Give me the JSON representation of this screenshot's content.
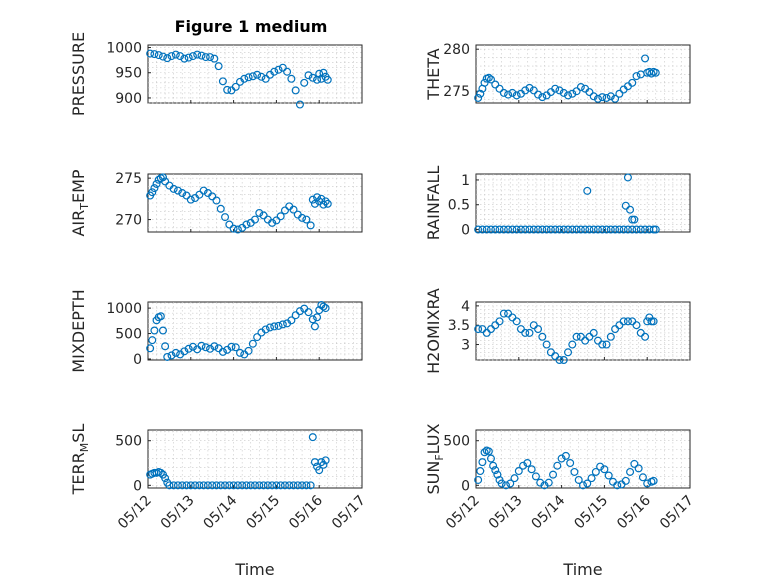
{
  "figure": {
    "title": "Figure 1 medium",
    "marker_color": "#0072BD",
    "grid": "minor-dotted"
  },
  "chart_data": [
    {
      "type": "scatter",
      "ylabel": "PRESSURE",
      "ylim": [
        890,
        1005
      ],
      "yticks": [
        900,
        950,
        1000
      ],
      "xlim": [
        "05/12",
        "05/17"
      ],
      "xticks": [
        "05/12",
        "05/13",
        "05/14",
        "05/15",
        "05/16",
        "05/17"
      ],
      "xlabel": "",
      "x": [
        0.05,
        0.15,
        0.25,
        0.35,
        0.45,
        0.55,
        0.65,
        0.75,
        0.85,
        0.95,
        1.05,
        1.15,
        1.25,
        1.35,
        1.45,
        1.55,
        1.65,
        1.75,
        1.85,
        1.95,
        2.05,
        2.15,
        2.25,
        2.35,
        2.45,
        2.55,
        2.65,
        2.75,
        2.85,
        2.95,
        3.05,
        3.15,
        3.25,
        3.35,
        3.45,
        3.55,
        3.65,
        3.75,
        3.85,
        3.95,
        4.0,
        4.05,
        4.1,
        4.15,
        4.2
      ],
      "y": [
        988,
        987,
        985,
        982,
        979,
        983,
        986,
        983,
        978,
        980,
        983,
        986,
        984,
        981,
        981,
        978,
        963,
        933,
        916,
        915,
        922,
        932,
        938,
        941,
        943,
        946,
        942,
        938,
        946,
        952,
        956,
        960,
        952,
        938,
        915,
        887,
        930,
        945,
        940,
        936,
        948,
        938,
        950,
        942,
        936
      ]
    },
    {
      "type": "scatter",
      "ylabel": "THETA",
      "ylim": [
        273.6,
        280.5
      ],
      "yticks": [
        275,
        280
      ],
      "xlim": [
        "05/12",
        "05/17"
      ],
      "xticks": [
        "05/12",
        "05/13",
        "05/14",
        "05/15",
        "05/16",
        "05/17"
      ],
      "xlabel": "",
      "x": [
        0.05,
        0.1,
        0.15,
        0.2,
        0.25,
        0.3,
        0.35,
        0.45,
        0.55,
        0.65,
        0.75,
        0.85,
        0.95,
        1.05,
        1.15,
        1.25,
        1.35,
        1.45,
        1.55,
        1.65,
        1.75,
        1.85,
        1.95,
        2.05,
        2.15,
        2.25,
        2.35,
        2.45,
        2.55,
        2.65,
        2.75,
        2.85,
        2.95,
        3.05,
        3.15,
        3.25,
        3.35,
        3.45,
        3.55,
        3.65,
        3.75,
        3.85,
        3.95,
        4.0,
        4.05,
        4.1,
        4.15,
        4.2
      ],
      "y": [
        274.2,
        274.7,
        275.3,
        276,
        276.5,
        276.6,
        276.4,
        275.8,
        275.3,
        274.8,
        274.6,
        274.8,
        274.5,
        274.7,
        275.1,
        275.4,
        275.1,
        274.6,
        274.3,
        274.5,
        274.9,
        275.3,
        275.1,
        274.8,
        274.5,
        274.7,
        275,
        275.5,
        275.3,
        274.9,
        274.4,
        274.1,
        274.3,
        274.2,
        274.4,
        274.1,
        274.7,
        275.2,
        275.6,
        276,
        276.8,
        277,
        278.9,
        277.2,
        277.3,
        277.1,
        277.3,
        277.2
      ]
    },
    {
      "type": "scatter",
      "ylabel": "AIR_TEMP",
      "ylim": [
        268.5,
        275.5
      ],
      "yticks": [
        270,
        275
      ],
      "xlim": [
        "05/12",
        "05/17"
      ],
      "xticks": [
        "05/12",
        "05/13",
        "05/14",
        "05/15",
        "05/16",
        "05/17"
      ],
      "xlabel": "",
      "x": [
        0.05,
        0.1,
        0.15,
        0.2,
        0.25,
        0.3,
        0.35,
        0.4,
        0.5,
        0.6,
        0.7,
        0.8,
        0.9,
        1.0,
        1.1,
        1.2,
        1.3,
        1.4,
        1.5,
        1.6,
        1.7,
        1.8,
        1.9,
        2.0,
        2.1,
        2.2,
        2.3,
        2.4,
        2.5,
        2.6,
        2.7,
        2.8,
        2.9,
        3.0,
        3.1,
        3.2,
        3.3,
        3.4,
        3.5,
        3.6,
        3.7,
        3.8,
        3.85,
        3.9,
        3.95,
        4.0,
        4.05,
        4.1,
        4.15,
        4.2
      ],
      "y": [
        272.9,
        273.3,
        273.8,
        274.3,
        274.8,
        275.0,
        275.1,
        274.6,
        274.1,
        273.7,
        273.5,
        273.2,
        272.9,
        272.4,
        272.6,
        273.0,
        273.5,
        273.2,
        272.8,
        272.3,
        271.3,
        270.3,
        269.4,
        268.9,
        268.8,
        269.0,
        269.4,
        269.6,
        270.0,
        270.8,
        270.5,
        270.0,
        269.6,
        269.9,
        270.4,
        271.1,
        271.6,
        271.2,
        270.6,
        270.2,
        270.0,
        269.3,
        272.4,
        271.9,
        272.7,
        272.2,
        272.5,
        271.8,
        272.2,
        271.9
      ]
    },
    {
      "type": "scatter",
      "ylabel": "RAINFALL",
      "ylim": [
        -0.05,
        1.12
      ],
      "yticks": [
        0,
        0.5,
        1
      ],
      "xlim": [
        "05/12",
        "05/17"
      ],
      "xticks": [
        "05/12",
        "05/13",
        "05/14",
        "05/15",
        "05/16",
        "05/17"
      ],
      "xlabel": "",
      "x": [
        0.05,
        0.15,
        0.25,
        0.35,
        0.45,
        0.55,
        0.65,
        0.75,
        0.85,
        0.95,
        1.05,
        1.15,
        1.25,
        1.35,
        1.45,
        1.55,
        1.65,
        1.75,
        1.85,
        1.95,
        2.05,
        2.15,
        2.25,
        2.35,
        2.45,
        2.55,
        2.65,
        2.75,
        2.85,
        2.95,
        3.05,
        3.15,
        3.25,
        3.35,
        3.45,
        3.55,
        3.65,
        3.75,
        3.85,
        3.95,
        4.05,
        4.15,
        4.2,
        2.6,
        3.55,
        3.5,
        3.6,
        3.65,
        3.7
      ],
      "y": [
        0,
        0,
        0,
        0,
        0,
        0,
        0,
        0,
        0,
        0,
        0,
        0,
        0,
        0,
        0,
        0,
        0,
        0,
        0,
        0,
        0,
        0,
        0,
        0,
        0,
        0,
        0,
        0,
        0,
        0,
        0,
        0,
        0,
        0,
        0,
        0,
        0,
        0,
        0,
        0,
        0,
        0,
        0,
        0.78,
        1.05,
        0.48,
        0.4,
        0.2,
        0.2
      ]
    },
    {
      "type": "scatter",
      "ylabel": "MIXDEPTH",
      "ylim": [
        -20,
        1120
      ],
      "yticks": [
        0,
        500,
        1000
      ],
      "xlim": [
        "05/12",
        "05/17"
      ],
      "xticks": [
        "05/12",
        "05/13",
        "05/14",
        "05/15",
        "05/16",
        "05/17"
      ],
      "xlabel": "",
      "x": [
        0.05,
        0.1,
        0.15,
        0.2,
        0.25,
        0.3,
        0.35,
        0.4,
        0.45,
        0.55,
        0.65,
        0.75,
        0.85,
        0.95,
        1.05,
        1.15,
        1.25,
        1.35,
        1.45,
        1.55,
        1.65,
        1.75,
        1.85,
        1.95,
        2.05,
        2.15,
        2.25,
        2.35,
        2.45,
        2.55,
        2.65,
        2.75,
        2.85,
        2.95,
        3.05,
        3.15,
        3.25,
        3.35,
        3.45,
        3.55,
        3.65,
        3.75,
        3.85,
        3.9,
        3.95,
        4.0,
        4.05,
        4.1,
        4.15
      ],
      "y": [
        210,
        370,
        560,
        760,
        820,
        840,
        560,
        250,
        40,
        70,
        120,
        90,
        150,
        200,
        240,
        190,
        260,
        230,
        200,
        250,
        210,
        140,
        180,
        240,
        230,
        120,
        90,
        160,
        300,
        430,
        520,
        580,
        620,
        640,
        650,
        680,
        700,
        760,
        860,
        940,
        990,
        920,
        780,
        640,
        820,
        960,
        1060,
        1030,
        1000
      ]
    },
    {
      "type": "scatter",
      "ylabel": "H2OMIXRA",
      "ylim": [
        2.6,
        4.1
      ],
      "yticks": [
        3,
        3.5,
        4
      ],
      "xlim": [
        "05/12",
        "05/17"
      ],
      "xticks": [
        "05/12",
        "05/13",
        "05/14",
        "05/15",
        "05/16",
        "05/17"
      ],
      "xlabel": "",
      "x": [
        0.05,
        0.15,
        0.25,
        0.35,
        0.45,
        0.55,
        0.65,
        0.75,
        0.85,
        0.95,
        1.05,
        1.15,
        1.25,
        1.35,
        1.45,
        1.55,
        1.65,
        1.75,
        1.85,
        1.95,
        2.05,
        2.15,
        2.25,
        2.35,
        2.45,
        2.55,
        2.65,
        2.75,
        2.85,
        2.95,
        3.05,
        3.15,
        3.25,
        3.35,
        3.45,
        3.55,
        3.65,
        3.75,
        3.85,
        3.95,
        4.0,
        4.05,
        4.1,
        4.15
      ],
      "y": [
        3.4,
        3.4,
        3.3,
        3.4,
        3.5,
        3.6,
        3.8,
        3.8,
        3.7,
        3.6,
        3.4,
        3.3,
        3.3,
        3.5,
        3.4,
        3.2,
        3.0,
        2.8,
        2.7,
        2.6,
        2.6,
        2.8,
        3.0,
        3.2,
        3.2,
        3.1,
        3.2,
        3.3,
        3.1,
        3.0,
        3.0,
        3.2,
        3.4,
        3.5,
        3.6,
        3.6,
        3.6,
        3.5,
        3.3,
        3.2,
        3.6,
        3.7,
        3.6,
        3.6
      ]
    },
    {
      "type": "scatter",
      "ylabel": "TERR_MSL",
      "ylim": [
        -30,
        620
      ],
      "yticks": [
        0,
        500
      ],
      "xlim": [
        "05/12",
        "05/17"
      ],
      "xticks": [
        "05/12",
        "05/13",
        "05/14",
        "05/15",
        "05/16",
        "05/17"
      ],
      "xlabel": "05/12 05/13 05/14 05/15 05/16 05/17",
      "x": [
        0.05,
        0.1,
        0.15,
        0.2,
        0.25,
        0.3,
        0.35,
        0.4,
        0.45,
        0.5,
        0.6,
        0.7,
        0.8,
        0.9,
        1.0,
        1.1,
        1.2,
        1.3,
        1.4,
        1.5,
        1.6,
        1.7,
        1.8,
        1.9,
        2.0,
        2.1,
        2.2,
        2.3,
        2.4,
        2.5,
        2.6,
        2.7,
        2.8,
        2.9,
        3.0,
        3.1,
        3.2,
        3.3,
        3.4,
        3.5,
        3.6,
        3.7,
        3.8,
        3.85,
        3.9,
        3.95,
        4.0,
        4.05,
        4.1,
        4.15
      ],
      "y": [
        120,
        130,
        140,
        140,
        150,
        140,
        120,
        80,
        30,
        0,
        0,
        0,
        0,
        0,
        0,
        0,
        0,
        0,
        0,
        0,
        0,
        0,
        0,
        0,
        0,
        0,
        0,
        0,
        0,
        0,
        0,
        0,
        0,
        0,
        0,
        0,
        0,
        0,
        0,
        0,
        0,
        0,
        0,
        540,
        260,
        210,
        170,
        260,
        230,
        280
      ]
    },
    {
      "type": "scatter",
      "ylabel": "SUN_FLUX",
      "ylim": [
        -30,
        620
      ],
      "yticks": [
        0,
        500
      ],
      "xlim": [
        "05/12",
        "05/17"
      ],
      "xticks": [
        "05/12",
        "05/13",
        "05/14",
        "05/15",
        "05/16",
        "05/17"
      ],
      "xlabel": "05/12 05/13 05/14 05/15 05/16 05/17",
      "x": [
        0.05,
        0.1,
        0.15,
        0.2,
        0.25,
        0.3,
        0.35,
        0.4,
        0.45,
        0.5,
        0.55,
        0.6,
        0.7,
        0.8,
        0.9,
        1.0,
        1.1,
        1.2,
        1.3,
        1.4,
        1.5,
        1.6,
        1.7,
        1.8,
        1.9,
        2.0,
        2.1,
        2.2,
        2.3,
        2.4,
        2.5,
        2.6,
        2.7,
        2.8,
        2.9,
        3.0,
        3.1,
        3.2,
        3.3,
        3.4,
        3.5,
        3.6,
        3.7,
        3.8,
        3.9,
        4.0,
        4.1,
        4.15
      ],
      "y": [
        60,
        160,
        260,
        370,
        390,
        380,
        300,
        220,
        170,
        120,
        60,
        20,
        0,
        20,
        80,
        160,
        220,
        250,
        180,
        100,
        30,
        0,
        30,
        120,
        220,
        300,
        330,
        250,
        150,
        60,
        0,
        20,
        80,
        150,
        210,
        180,
        110,
        40,
        0,
        10,
        50,
        150,
        240,
        190,
        90,
        20,
        40,
        50
      ]
    }
  ]
}
